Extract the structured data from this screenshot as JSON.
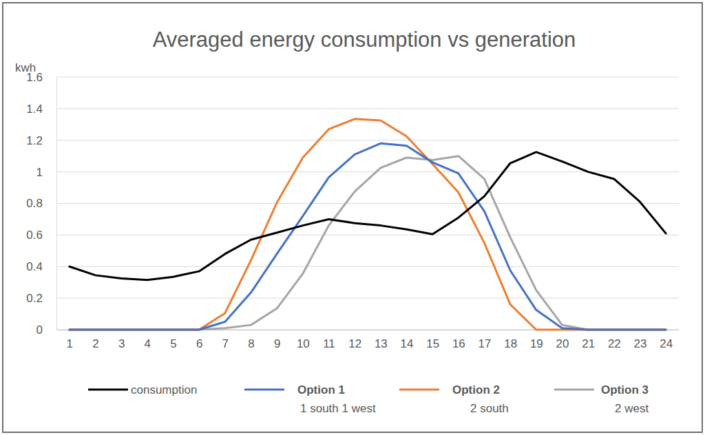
{
  "chart_data": {
    "type": "line",
    "title": "Averaged energy consumption vs generation",
    "y_label": "kwh",
    "categories": [
      1,
      2,
      3,
      4,
      5,
      6,
      7,
      8,
      9,
      10,
      11,
      12,
      13,
      14,
      15,
      16,
      17,
      18,
      19,
      20,
      21,
      22,
      23,
      24
    ],
    "series": [
      {
        "name": "consumption",
        "color": "#000000",
        "values": [
          0.4,
          0.345,
          0.325,
          0.315,
          0.335,
          0.37,
          0.48,
          0.57,
          0.615,
          0.66,
          0.7,
          0.675,
          0.66,
          0.635,
          0.605,
          0.71,
          0.845,
          1.055,
          1.125,
          1.065,
          1.0,
          0.955,
          0.81,
          0.61
        ]
      },
      {
        "name": "Option 1",
        "label": "1 south 1 west",
        "color": "#4472c4",
        "values": [
          0,
          0,
          0,
          0,
          0,
          0,
          0.05,
          0.235,
          0.48,
          0.72,
          0.965,
          1.11,
          1.18,
          1.165,
          1.06,
          0.99,
          0.75,
          0.375,
          0.125,
          0.01,
          0,
          0,
          0,
          0
        ]
      },
      {
        "name": "Option 2",
        "label": "2 south",
        "color": "#ed7d31",
        "values": [
          0,
          0,
          0,
          0,
          0,
          0,
          0.105,
          0.44,
          0.805,
          1.09,
          1.27,
          1.335,
          1.325,
          1.225,
          1.05,
          0.87,
          0.55,
          0.16,
          0,
          0,
          0,
          0,
          0,
          0
        ]
      },
      {
        "name": "Option 3",
        "label": "2 west",
        "color": "#a5a5a5",
        "values": [
          0,
          0,
          0,
          0,
          0,
          0,
          0.01,
          0.03,
          0.135,
          0.355,
          0.66,
          0.875,
          1.025,
          1.09,
          1.075,
          1.1,
          0.955,
          0.585,
          0.25,
          0.03,
          0,
          0,
          0,
          0
        ]
      }
    ],
    "ylim": [
      0,
      1.6
    ],
    "yticks": [
      0,
      0.2,
      0.4,
      0.6,
      0.8,
      1,
      1.2,
      1.4,
      1.6
    ],
    "grid": true,
    "legend": "bottom"
  }
}
